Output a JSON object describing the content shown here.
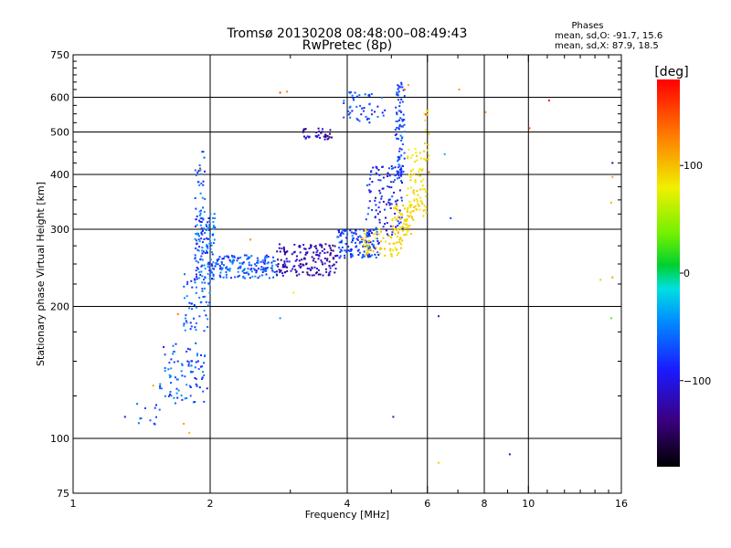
{
  "chart_data": {
    "type": "scatter",
    "title": "Tromsø 20130208 08:48:00–08:49:43",
    "subtitle": "RwPretec (8p)",
    "xlabel": "Frequency [MHz]",
    "ylabel": "Stationary phase Virtual Height [km]",
    "x_scale": "log",
    "y_scale": "log",
    "xlim": [
      1,
      16
    ],
    "ylim": [
      75,
      750
    ],
    "x_ticks": [
      1,
      2,
      4,
      6,
      8,
      10,
      16
    ],
    "x_tick_labels": [
      "1",
      "2",
      "4",
      "6",
      "8",
      "10",
      "16"
    ],
    "y_ticks": [
      75,
      100,
      200,
      300,
      400,
      500,
      600,
      750
    ],
    "y_tick_labels": [
      "75",
      "100",
      "200",
      "300",
      "400",
      "500",
      "600",
      "750"
    ],
    "grid": true,
    "phase_info": {
      "heading": "Phases",
      "line_o": "mean, sd,O: -91.7, 15.6",
      "line_x": "mean, sd,X:  87.9, 18.5"
    },
    "colorbar": {
      "label": "[deg]",
      "range": [
        -180,
        180
      ],
      "ticks": [
        100,
        0,
        -100
      ],
      "tick_labels": [
        "100",
        "0",
        "−100"
      ]
    },
    "series": [
      {
        "name": "O",
        "clusters": [
          {
            "f": [
              1.35,
              1.55
            ],
            "h": [
              105,
              122
            ],
            "n": 12,
            "phase": [
              -110,
              -80
            ]
          },
          {
            "f": [
              1.55,
              1.95
            ],
            "h": [
              120,
              165
            ],
            "n": 90,
            "phase": [
              -115,
              -75
            ]
          },
          {
            "f": [
              1.75,
              2.0
            ],
            "h": [
              175,
              240
            ],
            "n": 60,
            "phase": [
              -110,
              -70
            ]
          },
          {
            "f": [
              1.85,
              2.05
            ],
            "h": [
              230,
              330
            ],
            "n": 140,
            "phase": [
              -115,
              -70
            ]
          },
          {
            "f": [
              1.85,
              1.95
            ],
            "h": [
              330,
              460
            ],
            "n": 25,
            "phase": [
              -110,
              -80
            ]
          },
          {
            "f": [
              2.05,
              2.8
            ],
            "h": [
              232,
              262
            ],
            "n": 160,
            "phase": [
              -115,
              -75
            ]
          },
          {
            "f": [
              2.8,
              3.8
            ],
            "h": [
              235,
              278
            ],
            "n": 170,
            "phase": [
              -140,
              -110
            ]
          },
          {
            "f": [
              3.8,
              4.7
            ],
            "h": [
              258,
              300
            ],
            "n": 140,
            "phase": [
              -120,
              -85
            ]
          },
          {
            "f": [
              4.4,
              5.3
            ],
            "h": [
              290,
              420
            ],
            "n": 120,
            "phase": [
              -125,
              -90
            ]
          },
          {
            "f": [
              5.1,
              5.35
            ],
            "h": [
              400,
              650
            ],
            "n": 80,
            "phase": [
              -115,
              -85
            ]
          },
          {
            "f": [
              3.2,
              3.7
            ],
            "h": [
              480,
              510
            ],
            "n": 35,
            "phase": [
              -140,
              -110
            ]
          },
          {
            "f": [
              3.9,
              4.9
            ],
            "h": [
              525,
              620
            ],
            "n": 50,
            "phase": [
              -115,
              -85
            ]
          }
        ]
      },
      {
        "name": "X",
        "clusters": [
          {
            "f": [
              4.3,
              5.3
            ],
            "h": [
              260,
              300
            ],
            "n": 70,
            "phase": [
              80,
              100
            ]
          },
          {
            "f": [
              5.0,
              5.6
            ],
            "h": [
              290,
              340
            ],
            "n": 60,
            "phase": [
              80,
              100
            ]
          },
          {
            "f": [
              5.4,
              6.0
            ],
            "h": [
              320,
              460
            ],
            "n": 80,
            "phase": [
              78,
              98
            ]
          },
          {
            "f": [
              5.9,
              6.05
            ],
            "h": [
              430,
              560
            ],
            "n": 15,
            "phase": [
              75,
              100
            ]
          }
        ]
      }
    ],
    "points": [
      {
        "f": 2.85,
        "h": 615,
        "phase": 150
      },
      {
        "f": 2.95,
        "h": 618,
        "phase": 120
      },
      {
        "f": 3.05,
        "h": 215,
        "phase": 80
      },
      {
        "f": 2.85,
        "h": 188,
        "phase": -70
      },
      {
        "f": 5.05,
        "h": 112,
        "phase": -120
      },
      {
        "f": 6.35,
        "h": 88,
        "phase": 90
      },
      {
        "f": 6.35,
        "h": 190,
        "phase": -110
      },
      {
        "f": 6.75,
        "h": 318,
        "phase": -100
      },
      {
        "f": 6.55,
        "h": 445,
        "phase": -60
      },
      {
        "f": 7.05,
        "h": 625,
        "phase": 110
      },
      {
        "f": 8.05,
        "h": 555,
        "phase": 120
      },
      {
        "f": 9.1,
        "h": 92,
        "phase": -120
      },
      {
        "f": 10.05,
        "h": 510,
        "phase": 150
      },
      {
        "f": 11.1,
        "h": 590,
        "phase": 170
      },
      {
        "f": 14.4,
        "h": 230,
        "phase": 60
      },
      {
        "f": 15.2,
        "h": 188,
        "phase": 40
      },
      {
        "f": 15.3,
        "h": 425,
        "phase": -130
      },
      {
        "f": 15.3,
        "h": 395,
        "phase": 110
      },
      {
        "f": 15.2,
        "h": 345,
        "phase": 100
      },
      {
        "f": 15.3,
        "h": 233,
        "phase": 110
      },
      {
        "f": 1.75,
        "h": 108,
        "phase": 110
      },
      {
        "f": 1.8,
        "h": 103,
        "phase": 100
      },
      {
        "f": 1.5,
        "h": 132,
        "phase": 110
      },
      {
        "f": 1.7,
        "h": 192,
        "phase": 120
      },
      {
        "f": 1.9,
        "h": 410,
        "phase": 130
      },
      {
        "f": 2.45,
        "h": 284,
        "phase": 115
      },
      {
        "f": 6.05,
        "h": 405,
        "phase": 130
      },
      {
        "f": 5.95,
        "h": 548,
        "phase": 150
      },
      {
        "f": 5.35,
        "h": 625,
        "phase": 130
      },
      {
        "f": 5.45,
        "h": 640,
        "phase": 105
      },
      {
        "f": 1.97,
        "h": 130,
        "phase": -120
      },
      {
        "f": 1.3,
        "h": 112,
        "phase": -110
      }
    ]
  }
}
